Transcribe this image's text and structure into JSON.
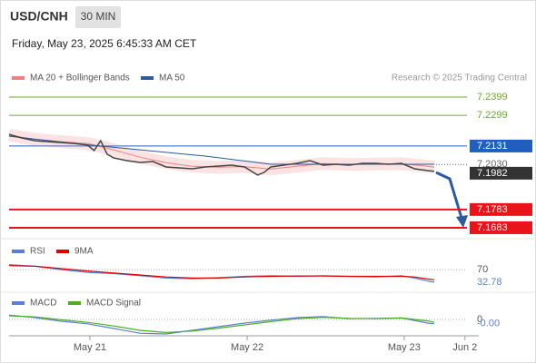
{
  "header": {
    "symbol": "USD/CNH",
    "interval": "30 MIN",
    "datetime": "Friday, May 23, 2025 6:45:33 AM CET",
    "credit": "Research © 2025 Trading Central"
  },
  "chart_data": [
    {
      "type": "line",
      "panel": "price",
      "color": "#444444",
      "x": [
        0,
        4,
        8,
        12,
        16,
        20,
        24,
        26,
        28,
        30,
        32,
        36,
        40,
        44,
        48,
        52,
        56,
        60,
        64,
        68,
        72,
        76,
        78,
        80,
        84,
        88,
        92,
        96,
        100,
        104,
        108,
        112,
        116,
        120,
        124,
        128,
        130
      ],
      "values": [
        7.2195,
        7.2175,
        7.216,
        7.2155,
        7.215,
        7.2145,
        7.2136,
        7.2106,
        7.216,
        7.2086,
        7.2066,
        7.2051,
        7.2041,
        7.2046,
        7.2016,
        7.2011,
        7.2006,
        7.2016,
        7.2021,
        7.2026,
        7.2016,
        7.1972,
        7.1987,
        7.2016,
        7.2026,
        7.2036,
        7.2051,
        7.2026,
        7.2031,
        7.2026,
        7.2036,
        7.2036,
        7.2031,
        7.2036,
        7.2006,
        7.1996,
        7.1992
      ],
      "series": [
        {
          "name": "MA 20 + Bollinger Bands",
          "color": "#f08080",
          "x": [
            0,
            8,
            16,
            24,
            32,
            40,
            48,
            56,
            64,
            72,
            80,
            88,
            96,
            104,
            112,
            120,
            128,
            130
          ],
          "values": [
            7.219,
            7.2168,
            7.2155,
            7.2145,
            7.211,
            7.207,
            7.204,
            7.202,
            7.2015,
            7.2018,
            7.2005,
            7.202,
            7.2035,
            7.203,
            7.2032,
            7.2034,
            7.202,
            7.2015
          ]
        },
        {
          "name": "MA 50",
          "color": "#2b5aa0",
          "x": [
            0,
            20,
            40,
            60,
            80,
            100,
            120,
            130
          ],
          "values": [
            7.2185,
            7.2145,
            7.211,
            7.2076,
            7.2031,
            7.2031,
            7.2031,
            7.2031
          ]
        }
      ],
      "levels": [
        {
          "value": 7.2399,
          "label": "7.2399",
          "color": "#6aaa2a",
          "line": "solid",
          "box": false
        },
        {
          "value": 7.2299,
          "label": "7.2299",
          "color": "#6aaa2a",
          "line": "solid",
          "box": false
        },
        {
          "value": 7.2131,
          "label": "7.2131",
          "color": "#1f5fbf",
          "line": "solid",
          "box": true
        },
        {
          "value": 7.203,
          "label": "7.2030",
          "color": "#666666",
          "line": "dotted",
          "box": false
        },
        {
          "value": 7.1982,
          "label": "7.1982",
          "color": "#333333",
          "line": "none",
          "box": true
        },
        {
          "value": 7.1783,
          "label": "7.1783",
          "color": "#e8141a",
          "line": "solid",
          "box": true
        },
        {
          "value": 7.1683,
          "label": "7.1683",
          "color": "#e8141a",
          "line": "solid",
          "box": true
        }
      ],
      "xlim": [
        0,
        140
      ],
      "ylim": [
        7.1628,
        7.2459
      ]
    },
    {
      "type": "line",
      "panel": "rsi",
      "series": [
        {
          "name": "RSI",
          "color": "#5b7fd6",
          "x": [
            0,
            8,
            16,
            24,
            32,
            40,
            48,
            56,
            64,
            72,
            80,
            88,
            96,
            104,
            112,
            120,
            124,
            128,
            130
          ],
          "values": [
            85,
            80,
            70,
            62,
            58,
            52,
            45,
            43,
            46,
            50,
            52,
            50,
            52,
            50,
            48,
            52,
            45,
            36,
            32.78
          ]
        },
        {
          "name": "9MA",
          "color": "#e00000",
          "x": [
            0,
            8,
            16,
            24,
            32,
            40,
            48,
            56,
            64,
            72,
            80,
            88,
            96,
            104,
            112,
            120,
            124,
            128,
            130
          ],
          "values": [
            82,
            80,
            73,
            66,
            60,
            54,
            48,
            45,
            45,
            48,
            50,
            51,
            51,
            50,
            50,
            50,
            48,
            42,
            40
          ]
        }
      ],
      "current_label": "32.78",
      "xlim": [
        0,
        140
      ],
      "ylim": [
        0,
        100
      ],
      "yticks": [
        70
      ]
    },
    {
      "type": "line",
      "panel": "macd",
      "series": [
        {
          "name": "MACD",
          "color": "#5b7fd6",
          "x": [
            0,
            8,
            16,
            24,
            32,
            40,
            48,
            56,
            64,
            72,
            80,
            88,
            96,
            104,
            112,
            120,
            128,
            130
          ],
          "values": [
            0.0012,
            0.0005,
            -0.0005,
            -0.0012,
            -0.0025,
            -0.0038,
            -0.004,
            -0.003,
            -0.002,
            -0.001,
            -0.0002,
            0.0005,
            0.0008,
            0.0002,
            0.0003,
            0.0004,
            -0.001,
            -0.0012
          ]
        },
        {
          "name": "MACD Signal",
          "color": "#4caf20",
          "x": [
            0,
            8,
            16,
            24,
            32,
            40,
            48,
            56,
            64,
            72,
            80,
            88,
            96,
            104,
            112,
            120,
            128,
            130
          ],
          "values": [
            0.001,
            0.0007,
            -0.0001,
            -0.0008,
            -0.0018,
            -0.003,
            -0.0036,
            -0.0032,
            -0.0024,
            -0.0015,
            -0.0006,
            0.0002,
            0.0006,
            0.0003,
            0.0002,
            0.0004,
            -0.0004,
            -0.0008
          ]
        }
      ],
      "current_label": "-0.00",
      "xlim": [
        0,
        140
      ],
      "ylim": [
        -0.005,
        0.003
      ],
      "yticks": [
        0
      ],
      "xticks": [
        {
          "value": 24.7,
          "label": "May 21"
        },
        {
          "value": 72.8,
          "label": "May 22"
        },
        {
          "value": 120.8,
          "label": "May 23"
        },
        {
          "value": 139.4,
          "label": "Jun 2"
        }
      ]
    }
  ]
}
